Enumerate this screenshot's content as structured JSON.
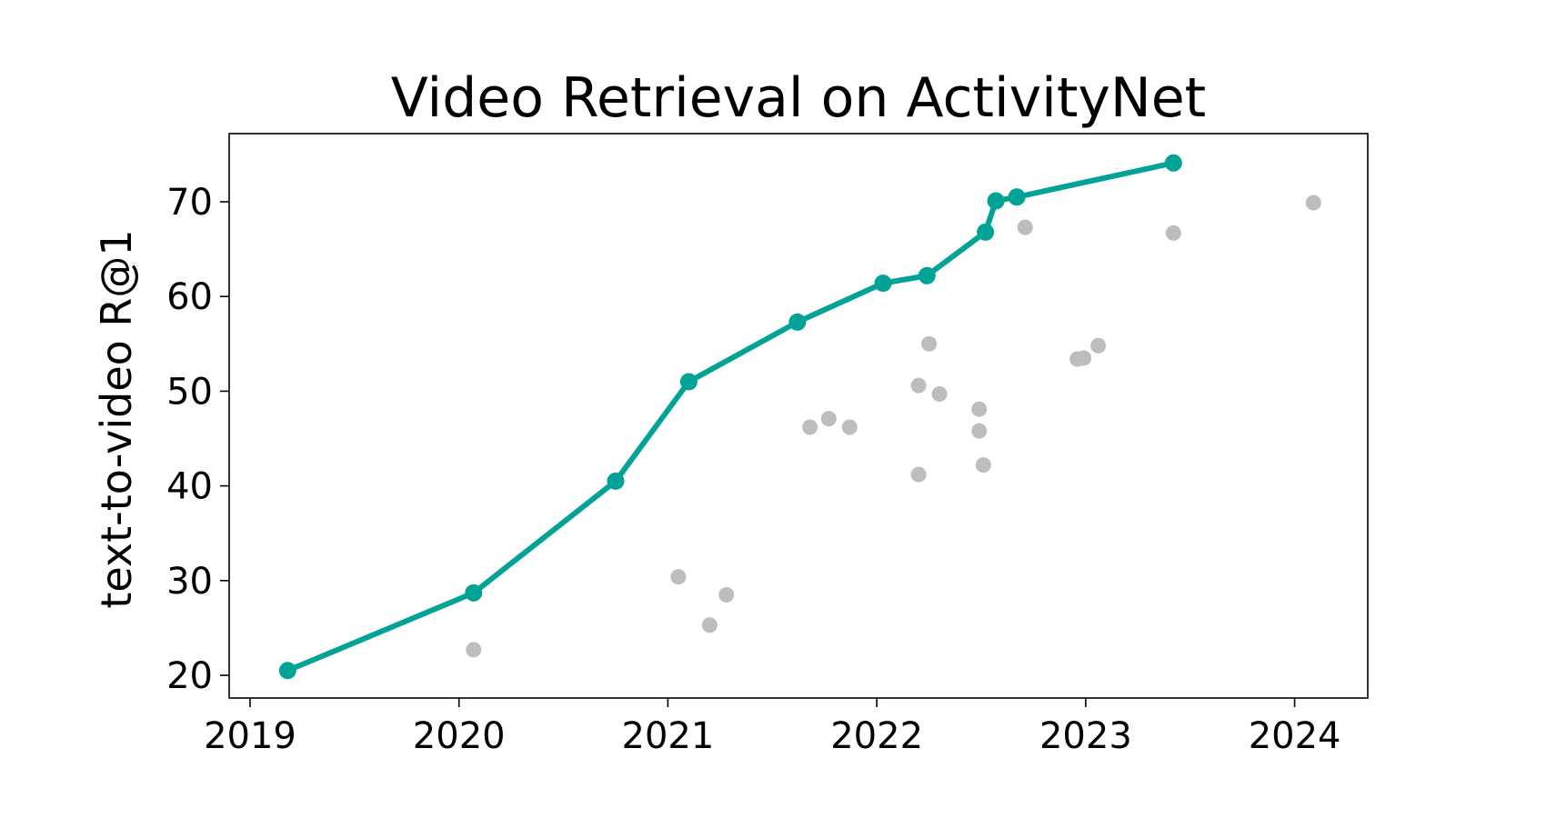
{
  "chart_data": {
    "type": "scatter",
    "title": "Video Retrieval on ActivityNet",
    "xlabel": "",
    "ylabel": "text-to-video R@1",
    "xlim": [
      2018.9,
      2024.35
    ],
    "ylim": [
      17.6,
      77.2
    ],
    "x_ticks": [
      {
        "value": 2019,
        "label": "2019"
      },
      {
        "value": 2020,
        "label": "2020"
      },
      {
        "value": 2021,
        "label": "2021"
      },
      {
        "value": 2022,
        "label": "2022"
      },
      {
        "value": 2023,
        "label": "2023"
      },
      {
        "value": 2024,
        "label": "2024"
      }
    ],
    "y_ticks": [
      {
        "value": 20,
        "label": "20"
      },
      {
        "value": 30,
        "label": "30"
      },
      {
        "value": 40,
        "label": "40"
      },
      {
        "value": 50,
        "label": "50"
      },
      {
        "value": 60,
        "label": "60"
      },
      {
        "value": 70,
        "label": "70"
      }
    ],
    "grid": false,
    "legend": "none",
    "series": [
      {
        "style": "line-with-markers",
        "color": "#00a396",
        "points": [
          {
            "x": 2019.18,
            "y": 20.5
          },
          {
            "x": 2020.07,
            "y": 28.7
          },
          {
            "x": 2020.75,
            "y": 40.5
          },
          {
            "x": 2021.1,
            "y": 51.0
          },
          {
            "x": 2021.62,
            "y": 57.3
          },
          {
            "x": 2022.03,
            "y": 61.4
          },
          {
            "x": 2022.24,
            "y": 62.2
          },
          {
            "x": 2022.52,
            "y": 66.8
          },
          {
            "x": 2022.57,
            "y": 70.1
          },
          {
            "x": 2022.67,
            "y": 70.5
          },
          {
            "x": 2023.42,
            "y": 74.1
          }
        ]
      },
      {
        "style": "markers",
        "color": "#bdbdbd",
        "points": [
          {
            "x": 2020.07,
            "y": 22.7
          },
          {
            "x": 2021.05,
            "y": 30.4
          },
          {
            "x": 2021.2,
            "y": 25.3
          },
          {
            "x": 2021.28,
            "y": 28.5
          },
          {
            "x": 2021.68,
            "y": 46.2
          },
          {
            "x": 2021.77,
            "y": 47.1
          },
          {
            "x": 2021.87,
            "y": 46.2
          },
          {
            "x": 2022.2,
            "y": 41.2
          },
          {
            "x": 2022.2,
            "y": 50.6
          },
          {
            "x": 2022.25,
            "y": 55.0
          },
          {
            "x": 2022.3,
            "y": 49.7
          },
          {
            "x": 2022.49,
            "y": 48.1
          },
          {
            "x": 2022.49,
            "y": 45.8
          },
          {
            "x": 2022.51,
            "y": 42.2
          },
          {
            "x": 2022.71,
            "y": 67.3
          },
          {
            "x": 2022.96,
            "y": 53.4
          },
          {
            "x": 2022.99,
            "y": 53.5
          },
          {
            "x": 2023.06,
            "y": 54.8
          },
          {
            "x": 2023.42,
            "y": 66.7
          },
          {
            "x": 2024.09,
            "y": 69.9
          }
        ]
      }
    ]
  }
}
